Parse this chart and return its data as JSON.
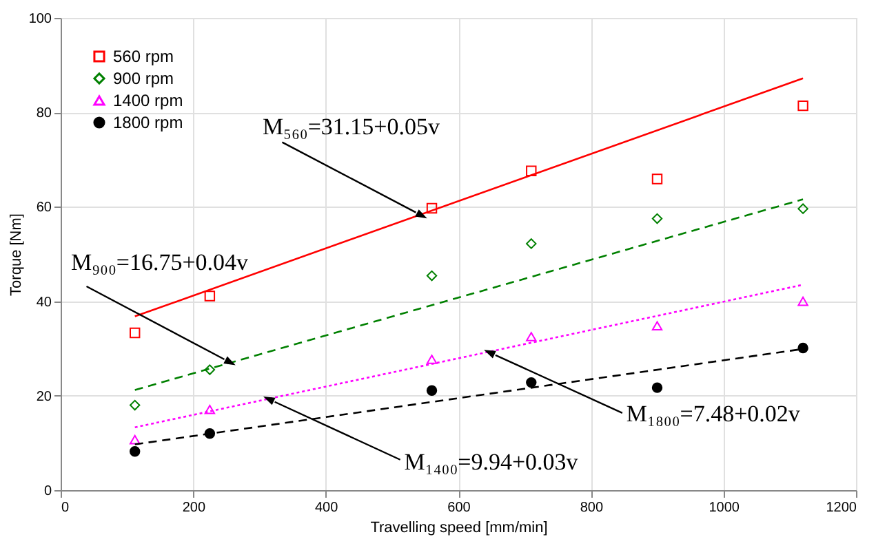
{
  "chart_data": {
    "type": "scatter",
    "xlabel": "Travelling speed [mm/min]",
    "ylabel": "Torque [Nm]",
    "xlim": [
      0,
      1200
    ],
    "xticks": [
      0,
      200,
      400,
      600,
      800,
      1000,
      1200
    ],
    "ylim": [
      0,
      100
    ],
    "yticks": [
      0,
      20,
      40,
      60,
      80,
      100
    ],
    "grid": true,
    "legend": "top left",
    "series": [
      {
        "name": "560 rpm",
        "marker": "square",
        "color": "#ff0000",
        "x": [
          112,
          225,
          560,
          710,
          900,
          1120
        ],
        "values": [
          33.3,
          41.1,
          59.7,
          67.6,
          65.9,
          81.4
        ]
      },
      {
        "name": "900 rpm",
        "marker": "diamond",
        "color": "#008000",
        "x": [
          112,
          225,
          560,
          710,
          900,
          1120
        ],
        "values": [
          18.0,
          25.5,
          45.4,
          52.2,
          57.5,
          59.6
        ]
      },
      {
        "name": "1400 rpm",
        "marker": "triangle",
        "color": "#ff00ff",
        "x": [
          112,
          225,
          560,
          710,
          900,
          1120
        ],
        "values": [
          10.7,
          17.1,
          27.7,
          32.5,
          34.8,
          40.0
        ]
      },
      {
        "name": "1800 rpm",
        "marker": "circle",
        "color": "#000000",
        "x": [
          112,
          225,
          560,
          710,
          900,
          1120
        ],
        "values": [
          8.2,
          12.0,
          21.1,
          22.8,
          21.7,
          30.1
        ]
      },
      {
        "type": "line",
        "line_style": "solid",
        "color": "#ff0000",
        "x": [
          112,
          1120
        ],
        "values": [
          36.8,
          87.2
        ]
      },
      {
        "type": "line",
        "line_style": "dashed",
        "color": "#008000",
        "x": [
          112,
          1120
        ],
        "values": [
          21.2,
          61.6
        ]
      },
      {
        "type": "line",
        "line_style": "dotted",
        "color": "#ff00ff",
        "x": [
          112,
          1120
        ],
        "values": [
          13.3,
          43.5
        ]
      },
      {
        "type": "line",
        "line_style": "dashed",
        "color": "#000000",
        "x": [
          112,
          1120
        ],
        "values": [
          9.7,
          29.9
        ]
      }
    ],
    "annotations": [
      {
        "text": "M₅₆₀=31.15+0.05v",
        "x": 536,
        "y": 58.8
      },
      {
        "text": "M₉₀₀=16.75+0.04v",
        "x": 247,
        "y": 27.7
      },
      {
        "text": "M₁₈₀₀=7.48+0.02v",
        "x": 656,
        "y": 28.6
      },
      {
        "text": "M₁₄₀₀=9.94+0.03v",
        "x": 323,
        "y": 18.7
      }
    ]
  }
}
